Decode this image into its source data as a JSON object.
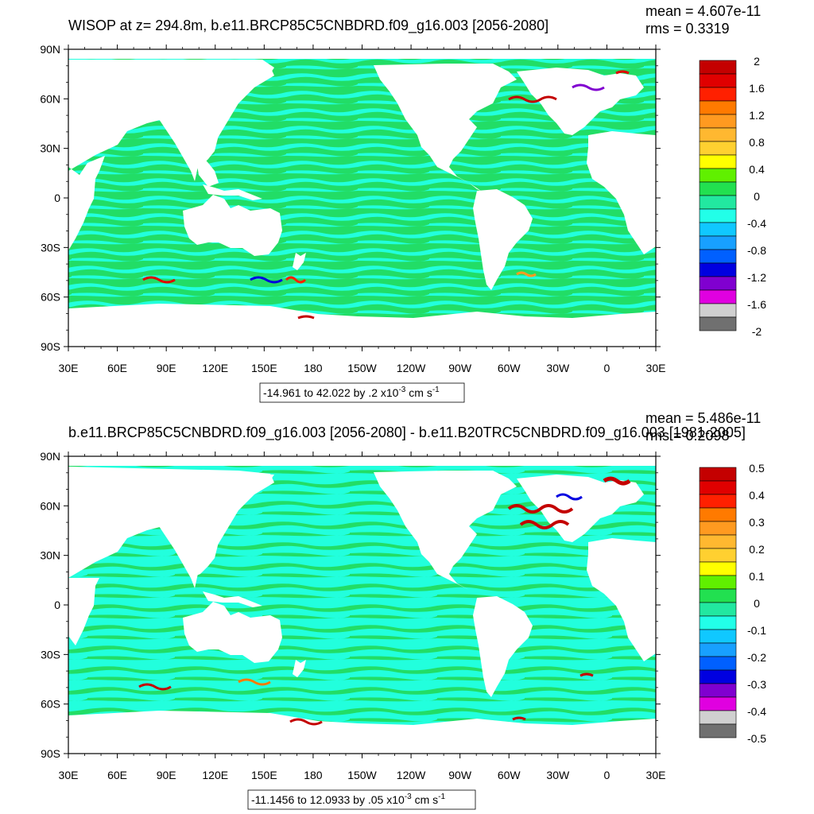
{
  "panels": [
    {
      "title": "WISOP at z= 294.8m, b.e11.BRCP85C5CNBDRD.f09_g16.003 [2056-2080]",
      "mean_text": "mean = 4.607e-11",
      "rms_text": "rms = 0.3319",
      "range_text": "-14.961 to 42.022 by .2 x10",
      "range_exp": "-3",
      "range_units": " cm s",
      "range_units_exp": "-1",
      "colorbar": {
        "labels": [
          "2",
          "1.6",
          "1.2",
          "0.8",
          "0.4",
          "0",
          "-0.4",
          "-0.8",
          "-1.2",
          "-1.6",
          "-2"
        ]
      }
    },
    {
      "title": "b.e11.BRCP85C5CNBDRD.f09_g16.003 [2056-2080] - b.e11.B20TRC5CNBDRD.f09_g16.003 [1981-2005]",
      "mean_text": "mean = 5.486e-11",
      "rms_text": "rms = 0.2098",
      "range_text": "-11.1456 to 12.0933 by .05 x10",
      "range_exp": "-3",
      "range_units": " cm s",
      "range_units_exp": "-1",
      "colorbar": {
        "labels": [
          "0.5",
          "0.4",
          "0.3",
          "0.2",
          "0.1",
          "0",
          "-0.1",
          "-0.2",
          "-0.3",
          "-0.4",
          "-0.5"
        ]
      }
    }
  ],
  "axes": {
    "y_ticks": [
      "90N",
      "60N",
      "30N",
      "0",
      "30S",
      "60S",
      "90S"
    ],
    "x_ticks": [
      "30E",
      "60E",
      "90E",
      "120E",
      "150E",
      "180",
      "150W",
      "120W",
      "90W",
      "60W",
      "30W",
      "0",
      "30E"
    ]
  },
  "colors": {
    "land": "#ffffff",
    "ocean_base": "#22dd66",
    "ocean_alt": "#22ffdd",
    "colorbar_bins": [
      "#c40000",
      "#e00000",
      "#ff2000",
      "#ff7a00",
      "#ff9a20",
      "#ffb830",
      "#ffd030",
      "#ffff00",
      "#60f000",
      "#22e050",
      "#22e8a0",
      "#22ffe8",
      "#10c8ff",
      "#18a0ff",
      "#0060ff",
      "#0000e0",
      "#8000d0",
      "#e000e0",
      "#d0d0d0",
      "#707070"
    ]
  },
  "chart_data": [
    {
      "type": "heatmap",
      "title": "WISOP at z= 294.8m, b.e11.BRCP85C5CNBDRD.f09_g16.003 [2056-2080]",
      "xlabel": "",
      "ylabel": "",
      "x_range": [
        "30E",
        "30E"
      ],
      "y_range": [
        -90,
        90
      ],
      "mean": 4.607e-11,
      "rms": 0.3319,
      "contour": {
        "min": -14.961,
        "max": 42.022,
        "interval": 0.2,
        "scale": "x10^-3 cm s^-1"
      },
      "colorbar_levels": [
        2,
        1.6,
        1.2,
        0.8,
        0.4,
        0,
        -0.4,
        -0.8,
        -1.2,
        -1.6,
        -2
      ],
      "legend": "right"
    },
    {
      "type": "heatmap",
      "title": "b.e11.BRCP85C5CNBDRD.f09_g16.003 [2056-2080] - b.e11.B20TRC5CNBDRD.f09_g16.003 [1981-2005]",
      "xlabel": "",
      "ylabel": "",
      "x_range": [
        "30E",
        "30E"
      ],
      "y_range": [
        -90,
        90
      ],
      "mean": 5.486e-11,
      "rms": 0.2098,
      "contour": {
        "min": -11.1456,
        "max": 12.0933,
        "interval": 0.05,
        "scale": "x10^-3 cm s^-1"
      },
      "colorbar_levels": [
        0.5,
        0.4,
        0.3,
        0.2,
        0.1,
        0,
        -0.1,
        -0.2,
        -0.3,
        -0.4,
        -0.5
      ],
      "legend": "right"
    }
  ]
}
